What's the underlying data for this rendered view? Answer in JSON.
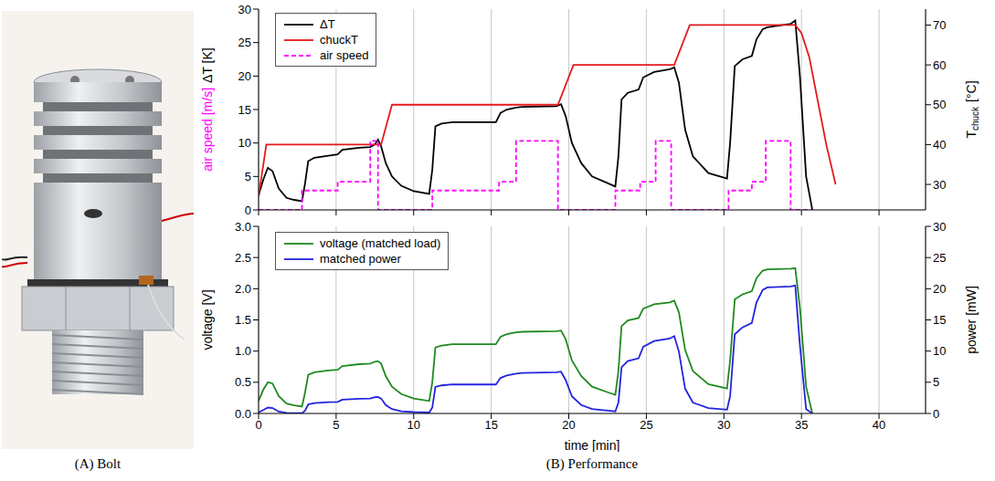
{
  "captions": [
    "(A) Bolt",
    "(B) Performance"
  ],
  "chart_data": [
    {
      "type": "line",
      "ylabel": [
        {
          "text": "air speed [m/s]",
          "color": "#ff00ff"
        },
        {
          "text": "ΔT [K]",
          "color": "#000000"
        }
      ],
      "y2label": [
        {
          "text": "T",
          "color": "#000000"
        },
        {
          "text": "chuck",
          "color": "#000000",
          "sub": true
        },
        {
          "text": "[°C]",
          "color": "#000000"
        }
      ],
      "xlim": [
        0,
        43
      ],
      "xticks": [
        0,
        5,
        10,
        15,
        20,
        25,
        30,
        35,
        40
      ],
      "ylim": [
        0,
        30
      ],
      "yticks": [
        0,
        5,
        10,
        15,
        20,
        25,
        30
      ],
      "y2lim": [
        23.6,
        74
      ],
      "y2ticks": [
        30,
        40,
        50,
        60,
        70
      ],
      "grid": true,
      "legend": "upper left",
      "tick_labels": "y",
      "series": [
        {
          "name": "ΔT",
          "color": "#000000",
          "line_style": "solid",
          "axis": "y",
          "x": [
            0,
            0.3,
            0.6,
            0.9,
            1.3,
            1.8,
            2.3,
            2.8,
            3.0,
            3.2,
            3.6,
            4.5,
            5.1,
            5.4,
            6.5,
            7.2,
            7.5,
            7.7,
            7.9,
            8.2,
            8.6,
            9.2,
            10,
            11,
            11.2,
            11.4,
            11.8,
            12.5,
            15.3,
            15.6,
            16,
            16.6,
            17,
            19.2,
            19.5,
            19.8,
            20.2,
            20.8,
            21.5,
            22.5,
            23,
            23.2,
            23.4,
            23.8,
            24.5,
            24.8,
            25.5,
            26.5,
            26.8,
            27.1,
            27.5,
            28,
            29,
            30.2,
            30.4,
            30.7,
            31.2,
            31.8,
            32.1,
            32.5,
            32.8,
            34.3,
            34.6,
            34.9,
            35.3,
            35.7
          ],
          "values": [
            2.2,
            4.5,
            6.3,
            5.8,
            3.2,
            1.8,
            1.5,
            1.3,
            4,
            7.3,
            7.8,
            8.1,
            8.3,
            9,
            9.3,
            9.4,
            9.8,
            10.5,
            9.5,
            7,
            5,
            3.6,
            2.8,
            2.4,
            6,
            12.5,
            12.9,
            13.1,
            13.1,
            14.5,
            15,
            15.3,
            15.4,
            15.5,
            15.8,
            14,
            10,
            7,
            5,
            4,
            3.5,
            8,
            16.5,
            17.5,
            18,
            19.8,
            20.6,
            21,
            21.3,
            19,
            12,
            8,
            5.5,
            4.7,
            10,
            21.5,
            22.5,
            23,
            25.5,
            27,
            27.3,
            27.8,
            28.3,
            20,
            5,
            0
          ]
        },
        {
          "name": "chuckT",
          "color": "#e41a1c",
          "line_style": "solid",
          "axis": "y2",
          "x": [
            0,
            0.5,
            7.9,
            8.6,
            19.3,
            20.3,
            26.8,
            27.8,
            34.6,
            35.0,
            35.5,
            36.0,
            36.6,
            37.2
          ],
          "values": [
            27,
            40,
            40,
            50,
            50,
            60,
            60,
            70,
            70,
            68,
            62,
            52,
            40,
            30
          ]
        },
        {
          "name": "air speed",
          "color": "#ff00ff",
          "line_style": "dashed",
          "axis": "y",
          "x": [
            0,
            2.8,
            2.8,
            5.1,
            5.1,
            7.2,
            7.2,
            7.7,
            7.7,
            11.2,
            11.2,
            15.5,
            15.5,
            16.6,
            16.6,
            19.3,
            19.3,
            23.0,
            23.0,
            24.6,
            24.6,
            25.6,
            25.6,
            26.6,
            26.6,
            30.3,
            30.3,
            31.8,
            31.8,
            32.7,
            32.7,
            34.3,
            34.3,
            35.7
          ],
          "values": [
            0,
            0,
            2.9,
            2.9,
            4.2,
            4.2,
            10.3,
            10.3,
            0,
            0,
            2.9,
            2.9,
            4.2,
            4.2,
            10.3,
            10.3,
            0,
            0,
            2.9,
            2.9,
            4.2,
            4.2,
            10.3,
            10.3,
            0,
            0,
            2.9,
            2.9,
            4.2,
            4.2,
            10.3,
            10.3,
            0,
            0
          ]
        }
      ]
    },
    {
      "type": "line",
      "xlabel": "time [min]",
      "ylabel": [
        {
          "text": "voltage [V]",
          "color": "#000000"
        }
      ],
      "y2label": [
        {
          "text": "power [mW]",
          "color": "#000000"
        }
      ],
      "xlim": [
        0,
        43
      ],
      "xticks": [
        0,
        5,
        10,
        15,
        20,
        25,
        30,
        35,
        40
      ],
      "ylim": [
        0,
        3
      ],
      "yticks": [
        {
          "value": 0,
          "label": "0.0"
        },
        0.5,
        {
          "value": 1,
          "label": "1.0"
        },
        1.5,
        {
          "value": 2,
          "label": "2.0"
        },
        2.5,
        {
          "value": 3,
          "label": "3.0"
        }
      ],
      "y2lim": [
        0,
        30
      ],
      "y2ticks": [
        0,
        5,
        10,
        15,
        20,
        25,
        30
      ],
      "grid": true,
      "legend": "upper left",
      "series": [
        {
          "name": "voltage (matched load)",
          "color": "#1f8a1f",
          "line_style": "solid",
          "axis": "y",
          "x": [
            0,
            0.3,
            0.6,
            0.9,
            1.3,
            1.8,
            2.3,
            2.8,
            3.0,
            3.2,
            3.6,
            4.5,
            5.1,
            5.4,
            6.5,
            7.2,
            7.5,
            7.7,
            7.9,
            8.2,
            8.6,
            9.2,
            10,
            11,
            11.2,
            11.4,
            11.8,
            12.5,
            15.3,
            15.6,
            16,
            16.6,
            17,
            19.2,
            19.5,
            19.8,
            20.2,
            20.8,
            21.5,
            22.5,
            23,
            23.2,
            23.4,
            23.8,
            24.5,
            24.8,
            25.5,
            26.5,
            26.8,
            27.1,
            27.5,
            28,
            29,
            30.2,
            30.4,
            30.7,
            31.2,
            31.8,
            32.1,
            32.5,
            32.8,
            34.3,
            34.6,
            34.9,
            35.3,
            35.7
          ],
          "values": [
            0.2,
            0.38,
            0.5,
            0.48,
            0.28,
            0.16,
            0.13,
            0.11,
            0.34,
            0.62,
            0.66,
            0.69,
            0.7,
            0.76,
            0.79,
            0.8,
            0.83,
            0.84,
            0.8,
            0.6,
            0.43,
            0.31,
            0.24,
            0.2,
            0.5,
            1.06,
            1.09,
            1.11,
            1.11,
            1.23,
            1.27,
            1.3,
            1.31,
            1.32,
            1.33,
            1.19,
            0.85,
            0.6,
            0.43,
            0.34,
            0.3,
            0.68,
            1.4,
            1.49,
            1.53,
            1.68,
            1.75,
            1.78,
            1.81,
            1.62,
            1.02,
            0.68,
            0.47,
            0.4,
            0.85,
            1.83,
            1.91,
            1.96,
            2.17,
            2.29,
            2.31,
            2.32,
            2.33,
            1.7,
            0.43,
            0
          ]
        },
        {
          "name": "matched power",
          "color": "#2323e0",
          "line_style": "solid",
          "axis": "y2",
          "x": [
            0,
            0.3,
            0.6,
            0.9,
            1.3,
            1.8,
            2.3,
            2.8,
            3.0,
            3.2,
            3.6,
            4.5,
            5.1,
            5.4,
            6.5,
            7.2,
            7.5,
            7.7,
            7.9,
            8.2,
            8.6,
            9.2,
            10,
            11,
            11.2,
            11.4,
            11.8,
            12.5,
            15.3,
            15.6,
            16,
            16.6,
            17,
            19.2,
            19.5,
            19.8,
            20.2,
            20.8,
            21.5,
            22.5,
            23,
            23.2,
            23.4,
            23.8,
            24.5,
            24.8,
            25.5,
            26.5,
            26.8,
            27.1,
            27.5,
            28,
            29,
            30.2,
            30.4,
            30.7,
            31.2,
            31.8,
            32.1,
            32.5,
            32.8,
            34.3,
            34.6,
            34.9,
            35.3,
            35.7
          ],
          "values": [
            0.15,
            0.55,
            0.95,
            0.87,
            0.3,
            0.1,
            0.06,
            0.05,
            0.44,
            1.45,
            1.65,
            1.8,
            1.85,
            2.2,
            2.35,
            2.4,
            2.6,
            2.65,
            2.4,
            1.35,
            0.7,
            0.36,
            0.22,
            0.15,
            0.95,
            4.25,
            4.5,
            4.65,
            4.65,
            5.7,
            6.1,
            6.4,
            6.5,
            6.6,
            6.7,
            5.35,
            2.75,
            1.35,
            0.7,
            0.45,
            0.34,
            1.75,
            7.4,
            8.4,
            8.85,
            10.7,
            11.6,
            12,
            12.4,
            9.9,
            3.95,
            1.75,
            0.85,
            0.6,
            2.75,
            12.7,
            13.8,
            14.5,
            17.8,
            19.8,
            20.2,
            20.35,
            20.5,
            10.9,
            0.7,
            0
          ]
        }
      ]
    }
  ]
}
